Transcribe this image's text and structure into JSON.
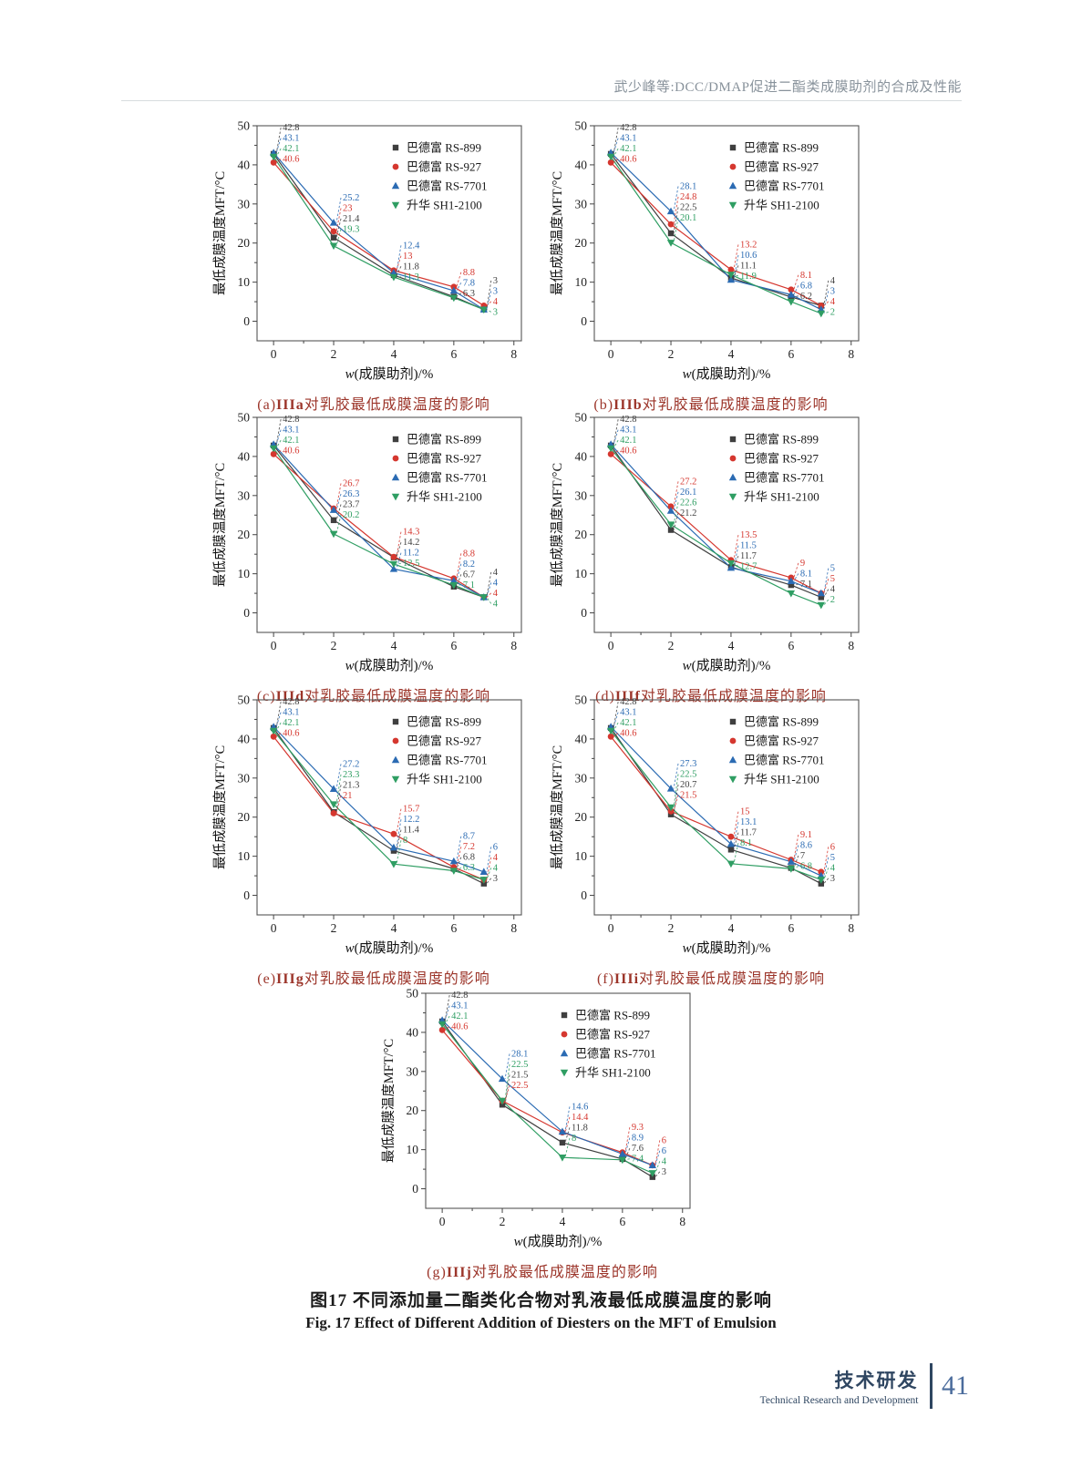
{
  "page": {
    "header_title": "武少峰等:DCC/DMAP促进二酯类成膜助剂的合成及性能",
    "figure_caption_zh": "图17  不同添加量二酯类化合物对乳液最低成膜温度的影响",
    "figure_caption_en": "Fig. 17  Effect of Different Addition of Diesters on the MFT of Emulsion",
    "footer": {
      "section_zh": "技术研发",
      "section_en": "Technical Research and Development",
      "page_number": "41"
    }
  },
  "colors": {
    "series_black": "#3f3f3f",
    "series_red": "#d5372f",
    "series_blue": "#2b6bb3",
    "series_green": "#2f9e63",
    "caption_red": "#9c352a",
    "header_gray": "#88929b",
    "footer_navy": "#2f4661",
    "footer_blue": "#4b6c9c"
  },
  "chart_data": {
    "type": "line",
    "x": [
      0,
      2,
      4,
      6,
      7
    ],
    "xlabel": "w(成膜助剂)/%",
    "ylabel": "最低成膜温度MFT/°C",
    "xlim": [
      -0.55,
      8.25
    ],
    "ylim": [
      -5,
      50
    ],
    "xticks": [
      0,
      2,
      4,
      6,
      8
    ],
    "xminor": [
      1,
      3,
      5,
      7
    ],
    "yticks": [
      0,
      10,
      20,
      30,
      40,
      50
    ],
    "yminor": [
      5,
      15,
      25,
      35,
      45
    ],
    "grid": false,
    "legend_position": "upper-right-inside",
    "legend": [
      {
        "name": "巴德富 RS-899",
        "color": "#3f3f3f",
        "marker": "square"
      },
      {
        "name": "巴德富 RS-927",
        "color": "#d5372f",
        "marker": "circle"
      },
      {
        "name": "巴德富 RS-7701",
        "color": "#2b6bb3",
        "marker": "triangle-up"
      },
      {
        "name": "升华 SH1-2100",
        "color": "#2f9e63",
        "marker": "triangle-down"
      }
    ],
    "caption_rest": "对乳胶最低成膜温度的影响",
    "charts": [
      {
        "id": "a",
        "cap_pre": "(a)",
        "cap_code": "IIIa",
        "series": [
          [
            42.8,
            21.4,
            11.8,
            6.3,
            3
          ],
          [
            40.6,
            23,
            13,
            8.8,
            4
          ],
          [
            43.1,
            25.2,
            12.4,
            7.8,
            3
          ],
          [
            42.1,
            19.3,
            11.3,
            6,
            3
          ]
        ],
        "labels": [
          [
            [
              0,
              "42.8"
            ],
            [
              2,
              "43.1"
            ],
            [
              3,
              "42.1"
            ],
            [
              1,
              "40.6"
            ]
          ],
          [
            [
              2,
              "25.2"
            ],
            [
              1,
              "23"
            ],
            [
              0,
              "21.4"
            ],
            [
              3,
              "19.3"
            ]
          ],
          [
            [
              2,
              "12.4"
            ],
            [
              1,
              "13"
            ],
            [
              0,
              "11.8"
            ],
            [
              3,
              "11.3"
            ]
          ],
          [
            [
              1,
              "8.8"
            ],
            [
              2,
              "7.8"
            ],
            [
              0,
              "6.3"
            ]
          ],
          [
            [
              0,
              "3"
            ],
            [
              2,
              "3"
            ],
            [
              1,
              "4"
            ],
            [
              3,
              "3"
            ]
          ]
        ]
      },
      {
        "id": "b",
        "cap_pre": "(b)",
        "cap_code": "IIIb",
        "series": [
          [
            42.8,
            22.5,
            11.1,
            6.2,
            4
          ],
          [
            40.6,
            24.8,
            13.2,
            8.1,
            4
          ],
          [
            43.1,
            28.1,
            10.6,
            6.8,
            3
          ],
          [
            42.1,
            20.1,
            11.9,
            5,
            2
          ]
        ],
        "labels": [
          [
            [
              0,
              "42.8"
            ],
            [
              2,
              "43.1"
            ],
            [
              3,
              "42.1"
            ],
            [
              1,
              "40.6"
            ]
          ],
          [
            [
              2,
              "28.1"
            ],
            [
              1,
              "24.8"
            ],
            [
              0,
              "22.5"
            ],
            [
              3,
              "20.1"
            ]
          ],
          [
            [
              1,
              "13.2"
            ],
            [
              2,
              "10.6"
            ],
            [
              0,
              "11.1"
            ],
            [
              3,
              "11.9"
            ]
          ],
          [
            [
              1,
              "8.1"
            ],
            [
              2,
              "6.8"
            ],
            [
              0,
              "6.2"
            ]
          ],
          [
            [
              0,
              "4"
            ],
            [
              2,
              "3"
            ],
            [
              1,
              "4"
            ],
            [
              3,
              "2"
            ]
          ]
        ]
      },
      {
        "id": "c",
        "cap_pre": "(c)",
        "cap_code": "IIId",
        "series": [
          [
            42.8,
            23.7,
            14.2,
            6.7,
            4
          ],
          [
            40.6,
            26.7,
            14.3,
            8.8,
            4
          ],
          [
            43.1,
            26.3,
            11.2,
            8.2,
            4
          ],
          [
            42.1,
            20.2,
            12.5,
            7.1,
            4
          ]
        ],
        "labels": [
          [
            [
              0,
              "42.8"
            ],
            [
              2,
              "43.1"
            ],
            [
              3,
              "42.1"
            ],
            [
              1,
              "40.6"
            ]
          ],
          [
            [
              1,
              "26.7"
            ],
            [
              2,
              "26.3"
            ],
            [
              0,
              "23.7"
            ],
            [
              3,
              "20.2"
            ]
          ],
          [
            [
              1,
              "14.3"
            ],
            [
              0,
              "14.2"
            ],
            [
              2,
              "11.2"
            ],
            [
              3,
              "12.5"
            ]
          ],
          [
            [
              1,
              "8.8"
            ],
            [
              2,
              "8.2"
            ],
            [
              0,
              "6.7"
            ],
            [
              3,
              "7.1"
            ]
          ],
          [
            [
              0,
              "4"
            ],
            [
              2,
              "4"
            ],
            [
              1,
              "4"
            ],
            [
              3,
              "4"
            ]
          ]
        ]
      },
      {
        "id": "d",
        "cap_pre": "(d)",
        "cap_code": "IIIf",
        "series": [
          [
            42.8,
            21.2,
            11.7,
            7.1,
            4
          ],
          [
            40.6,
            27.2,
            13.5,
            9,
            5
          ],
          [
            43.1,
            26.1,
            11.5,
            8.1,
            5
          ],
          [
            42.1,
            22.6,
            12.7,
            5,
            2
          ]
        ],
        "labels": [
          [
            [
              0,
              "42.8"
            ],
            [
              2,
              "43.1"
            ],
            [
              3,
              "42.1"
            ],
            [
              1,
              "40.6"
            ]
          ],
          [
            [
              1,
              "27.2"
            ],
            [
              2,
              "26.1"
            ],
            [
              3,
              "22.6"
            ],
            [
              0,
              "21.2"
            ]
          ],
          [
            [
              1,
              "13.5"
            ],
            [
              2,
              "11.5"
            ],
            [
              0,
              "11.7"
            ],
            [
              3,
              "12.7"
            ]
          ],
          [
            [
              1,
              "9"
            ],
            [
              2,
              "8.1"
            ],
            [
              0,
              "7.1"
            ]
          ],
          [
            [
              2,
              "5"
            ],
            [
              1,
              "5"
            ],
            [
              0,
              "4"
            ],
            [
              3,
              "2"
            ]
          ]
        ]
      },
      {
        "id": "e",
        "cap_pre": "(e)",
        "cap_code": "IIIg",
        "series": [
          [
            42.8,
            21.3,
            11.4,
            6.8,
            3
          ],
          [
            40.6,
            21,
            15.7,
            7.2,
            4
          ],
          [
            43.1,
            27.2,
            12.2,
            8.7,
            6
          ],
          [
            42.1,
            23.3,
            8,
            6.3,
            4
          ]
        ],
        "labels": [
          [
            [
              0,
              "42.8"
            ],
            [
              2,
              "43.1"
            ],
            [
              3,
              "42.1"
            ],
            [
              1,
              "40.6"
            ]
          ],
          [
            [
              2,
              "27.2"
            ],
            [
              3,
              "23.3"
            ],
            [
              0,
              "21.3"
            ],
            [
              1,
              "21"
            ]
          ],
          [
            [
              1,
              "15.7"
            ],
            [
              2,
              "12.2"
            ],
            [
              0,
              "11.4"
            ],
            [
              3,
              "8"
            ]
          ],
          [
            [
              2,
              "8.7"
            ],
            [
              1,
              "7.2"
            ],
            [
              0,
              "6.8"
            ],
            [
              3,
              "6.3"
            ]
          ],
          [
            [
              2,
              "6"
            ],
            [
              1,
              "4"
            ],
            [
              3,
              "4"
            ],
            [
              0,
              "3"
            ]
          ]
        ]
      },
      {
        "id": "f",
        "cap_pre": "(f)",
        "cap_code": "IIIi",
        "series": [
          [
            42.8,
            20.7,
            11.7,
            7,
            3
          ],
          [
            40.6,
            21.5,
            15,
            9.1,
            6
          ],
          [
            43.1,
            27.3,
            13.1,
            8.6,
            5
          ],
          [
            42.1,
            22.5,
            8.1,
            6.8,
            4
          ]
        ],
        "labels": [
          [
            [
              0,
              "42.8"
            ],
            [
              2,
              "43.1"
            ],
            [
              3,
              "42.1"
            ],
            [
              1,
              "40.6"
            ]
          ],
          [
            [
              2,
              "27.3"
            ],
            [
              3,
              "22.5"
            ],
            [
              0,
              "20.7"
            ],
            [
              1,
              "21.5"
            ]
          ],
          [
            [
              1,
              "15"
            ],
            [
              2,
              "13.1"
            ],
            [
              0,
              "11.7"
            ],
            [
              3,
              "8.1"
            ]
          ],
          [
            [
              1,
              "9.1"
            ],
            [
              2,
              "8.6"
            ],
            [
              0,
              "7"
            ],
            [
              3,
              "6.8"
            ]
          ],
          [
            [
              1,
              "6"
            ],
            [
              2,
              "5"
            ],
            [
              3,
              "4"
            ],
            [
              0,
              "3"
            ]
          ]
        ]
      },
      {
        "id": "g",
        "cap_pre": "(g)",
        "cap_code": "IIIj",
        "series": [
          [
            42.8,
            21.5,
            11.8,
            7.6,
            3
          ],
          [
            40.6,
            22.5,
            14.4,
            9.3,
            6
          ],
          [
            43.1,
            28.1,
            14.6,
            8.9,
            6
          ],
          [
            42.1,
            22.5,
            8,
            7.4,
            4
          ]
        ],
        "labels": [
          [
            [
              0,
              "42.8"
            ],
            [
              2,
              "43.1"
            ],
            [
              3,
              "42.1"
            ],
            [
              1,
              "40.6"
            ]
          ],
          [
            [
              2,
              "28.1"
            ],
            [
              3,
              "22.5"
            ],
            [
              0,
              "21.5"
            ],
            [
              1,
              "22.5"
            ]
          ],
          [
            [
              2,
              "14.6"
            ],
            [
              1,
              "14.4"
            ],
            [
              0,
              "11.8"
            ],
            [
              3,
              "8"
            ]
          ],
          [
            [
              1,
              "9.3"
            ],
            [
              2,
              "8.9"
            ],
            [
              0,
              "7.6"
            ],
            [
              3,
              "7.4"
            ]
          ],
          [
            [
              1,
              "6"
            ],
            [
              2,
              "6"
            ],
            [
              3,
              "4"
            ],
            [
              0,
              "3"
            ]
          ]
        ]
      }
    ]
  }
}
